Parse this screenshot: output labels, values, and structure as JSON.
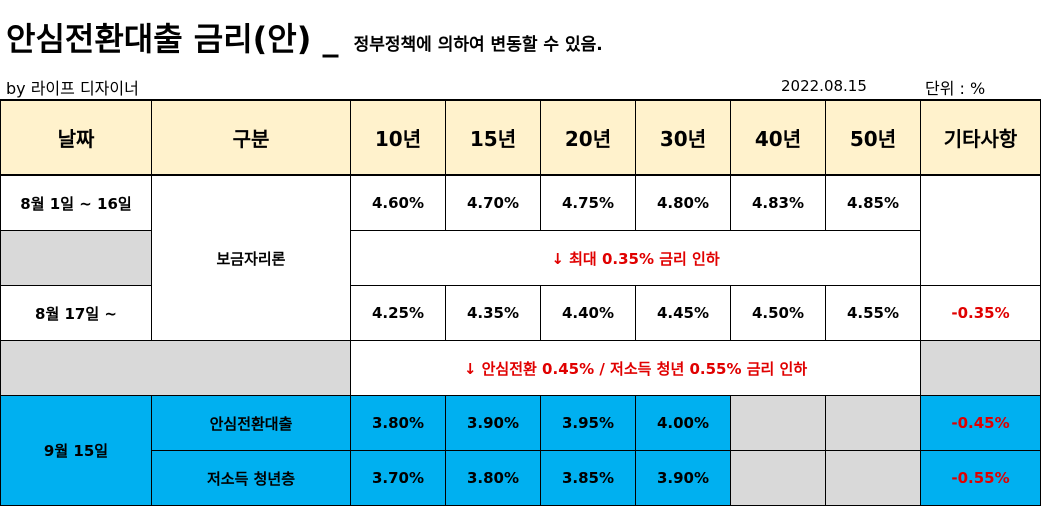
{
  "header": {
    "title": "안심전환대출 금리(안) _",
    "note": "정부정책에 의하여 변동할 수 있음.",
    "byline": "by 라이프 디자이너",
    "date": "2022.08.15",
    "unit": "단위 : %"
  },
  "columns": [
    "날짜",
    "구분",
    "10년",
    "15년",
    "20년",
    "30년",
    "40년",
    "50년",
    "기타사항"
  ],
  "rows": {
    "period1": {
      "date": "8월 1일 ~ 16일",
      "rates": [
        "4.60%",
        "4.70%",
        "4.75%",
        "4.80%",
        "4.83%",
        "4.85%"
      ]
    },
    "bogeum_label": "보금자리론",
    "notice1": "↓ 최대 0.35% 금리 인하",
    "period2": {
      "date": "8월 17일 ~",
      "rates": [
        "4.25%",
        "4.35%",
        "4.40%",
        "4.45%",
        "4.50%",
        "4.55%"
      ],
      "note": "-0.35%"
    },
    "notice2": "↓ 안심전환 0.45% / 저소득 청년 0.55% 금리 인하",
    "period3_date": "9월 15일",
    "ansim": {
      "label": "안심전환대출",
      "rates": [
        "3.80%",
        "3.90%",
        "3.95%",
        "4.00%"
      ],
      "note": "-0.45%"
    },
    "youth": {
      "label": "저소득 청년층",
      "rates": [
        "3.70%",
        "3.80%",
        "3.85%",
        "3.90%"
      ],
      "note": "-0.55%"
    }
  },
  "colors": {
    "header_bg": "#fff2cc",
    "gray": "#d9d9d9",
    "blue": "#00b0f0",
    "red": "#e00000"
  }
}
